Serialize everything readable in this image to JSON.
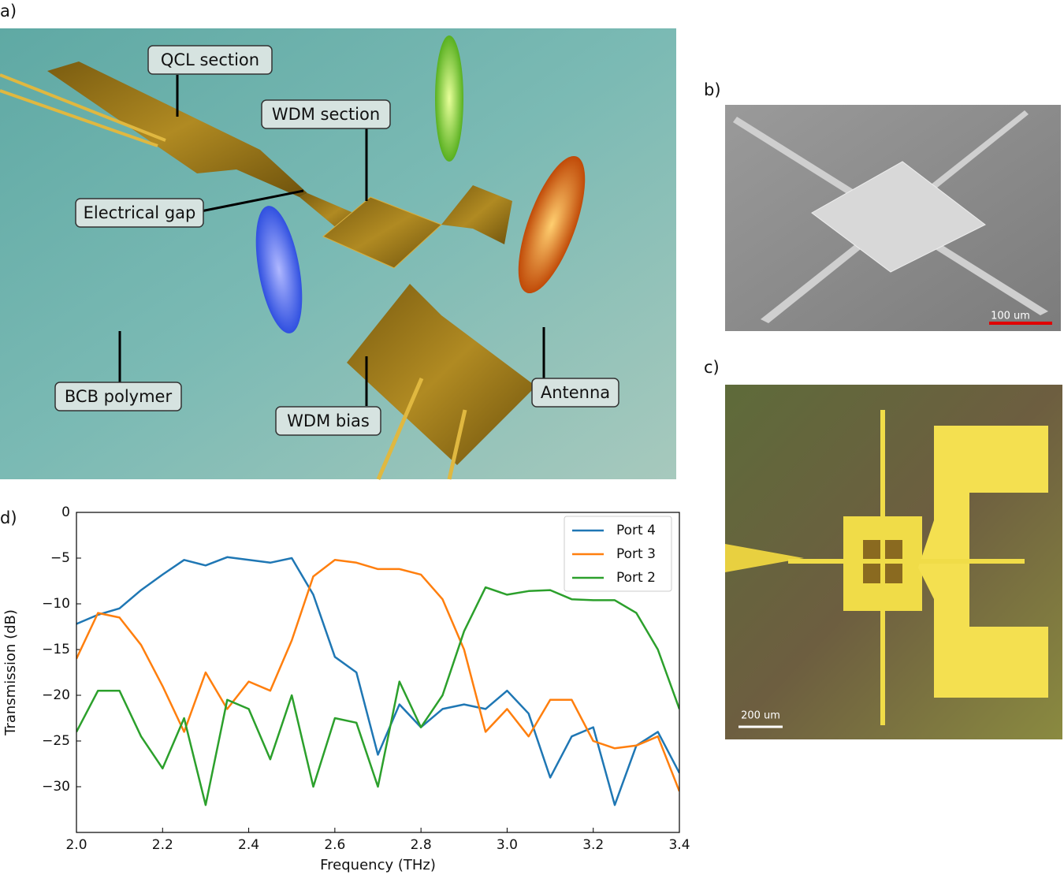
{
  "panels": {
    "a": {
      "label": "a)",
      "annotations": [
        "QCL section",
        "WDM section",
        "Electrical gap",
        "BCB polymer",
        "WDM bias",
        "Antenna"
      ]
    },
    "b": {
      "label": "b)",
      "scale_bar": "100 um"
    },
    "c": {
      "label": "c)",
      "scale_bar": "200 um"
    },
    "d": {
      "label": "d)"
    }
  },
  "chart_data": {
    "type": "line",
    "xlabel": "Frequency (THz)",
    "ylabel": "Transmission (dB)",
    "x": [
      2.0,
      2.05,
      2.1,
      2.15,
      2.2,
      2.25,
      2.3,
      2.35,
      2.4,
      2.45,
      2.5,
      2.55,
      2.6,
      2.65,
      2.7,
      2.75,
      2.8,
      2.85,
      2.9,
      2.95,
      3.0,
      3.05,
      3.1,
      3.15,
      3.2,
      3.25,
      3.3,
      3.35,
      3.4
    ],
    "series": [
      {
        "name": "Port 4",
        "color": "#1f77b4",
        "values": [
          -12.2,
          -11.2,
          -10.5,
          -8.5,
          -6.8,
          -5.2,
          -5.8,
          -4.9,
          -5.2,
          -5.5,
          -5.0,
          -9,
          -15.8,
          -17.5,
          -26.5,
          -21,
          -23.5,
          -21.5,
          -21,
          -21.5,
          -19.5,
          -22,
          -29,
          -24.5,
          -23.5,
          -32,
          -25.5,
          -24,
          -28.5
        ]
      },
      {
        "name": "Port 3",
        "color": "#ff7f0e",
        "values": [
          -16,
          -11,
          -11.5,
          -14.5,
          -19,
          -24,
          -17.5,
          -21.5,
          -18.5,
          -19.5,
          -14,
          -7,
          -5.2,
          -5.5,
          -6.2,
          -6.2,
          -6.8,
          -9.5,
          -15,
          -24,
          -21.5,
          -24.5,
          -20.5,
          -20.5,
          -25,
          -25.8,
          -25.5,
          -24.5,
          -30.5
        ]
      },
      {
        "name": "Port 2",
        "color": "#2ca02c",
        "values": [
          -24,
          -19.5,
          -19.5,
          -24.5,
          -28,
          -22.5,
          -32,
          -20.5,
          -21.5,
          -27,
          -20,
          -30,
          -22.5,
          -23,
          -30,
          -18.5,
          -23.5,
          -20,
          -13,
          -8.2,
          -9,
          -8.6,
          -8.5,
          -9.5,
          -9.6,
          -9.6,
          -11,
          -15,
          -21.5
        ]
      }
    ],
    "xlim": [
      2.0,
      3.4
    ],
    "ylim": [
      -35,
      0
    ],
    "xticks": [
      {
        "value": 2.0,
        "label": "2.0"
      },
      2.2,
      2.4,
      2.6,
      2.8,
      {
        "value": 3.0,
        "label": "3.0"
      },
      3.2,
      3.4
    ],
    "yticks": [
      0,
      {
        "value": -5,
        "label": "−5"
      },
      {
        "value": -10,
        "label": "−10"
      },
      {
        "value": -15,
        "label": "−15"
      },
      {
        "value": -20,
        "label": "−20"
      },
      {
        "value": -25,
        "label": "−25"
      },
      {
        "value": -30,
        "label": "−30"
      }
    ],
    "legend": "upper right"
  }
}
